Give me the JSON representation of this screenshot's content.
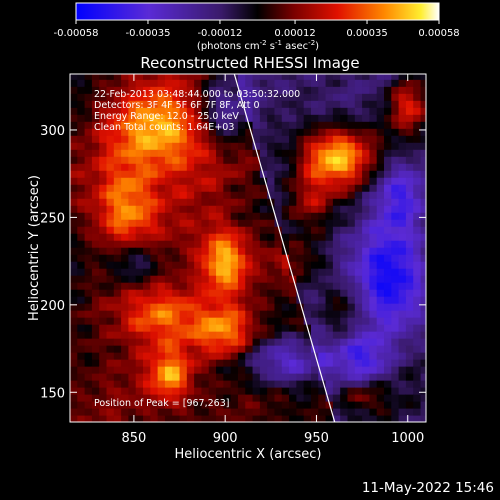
{
  "chart_data": {
    "type": "heatmap",
    "title": "Reconstructed RHESSI Image",
    "xlabel": "Heliocentric X (arcsec)",
    "ylabel": "Heliocentric Y (arcsec)",
    "xlim": [
      815,
      1010
    ],
    "ylim": [
      133,
      332
    ],
    "x_ticks": [
      "850",
      "900",
      "950",
      "1000"
    ],
    "y_ticks": [
      "150",
      "200",
      "250",
      "300"
    ],
    "colorbar": {
      "range": [
        -0.00058,
        0.00058
      ],
      "ticks": [
        "-0.00058",
        "-0.00035",
        "-0.00012",
        "0.00012",
        "0.00035",
        "0.00058"
      ],
      "label_main": "(photons cm",
      "label_exp1": "-2",
      "label_mid": " s",
      "label_exp2": "-1",
      "label_unit": " asec",
      "label_exp3": "-2",
      "label_end": ")",
      "colormap": "blue-purple-black-red-yellow-white"
    },
    "annotations": [
      "22-Feb-2013 03:48:44.000 to 03:50:32.000",
      "Detectors: 3F 4F 5F 6F 7F 8F, Att 0",
      "Energy Range: 12.0 - 25.0 keV",
      "Clean    Total counts: 1.64E+03"
    ],
    "peak_label": "Position of Peak = [967,263]",
    "peak": [
      967,
      263
    ],
    "limb_line": [
      [
        905,
        332
      ],
      [
        960,
        133
      ]
    ],
    "hot_spots": [
      {
        "x": 960,
        "y": 285,
        "amp": 0.00058,
        "sx": 14,
        "sy": 12
      },
      {
        "x": 865,
        "y": 300,
        "amp": 0.0004,
        "sx": 20,
        "sy": 18
      },
      {
        "x": 845,
        "y": 255,
        "amp": 0.00035,
        "sx": 12,
        "sy": 18
      },
      {
        "x": 900,
        "y": 225,
        "amp": 0.00045,
        "sx": 10,
        "sy": 14
      },
      {
        "x": 865,
        "y": 195,
        "amp": 0.0003,
        "sx": 16,
        "sy": 12
      },
      {
        "x": 900,
        "y": 185,
        "amp": 0.00035,
        "sx": 12,
        "sy": 10
      },
      {
        "x": 945,
        "y": 260,
        "amp": 0.00025,
        "sx": 10,
        "sy": 12
      },
      {
        "x": 870,
        "y": 160,
        "amp": 0.00035,
        "sx": 8,
        "sy": 10
      },
      {
        "x": 1000,
        "y": 315,
        "amp": 0.0003,
        "sx": 8,
        "sy": 10
      },
      {
        "x": 940,
        "y": 225,
        "amp": 0.0002,
        "sx": 10,
        "sy": 10
      },
      {
        "x": 965,
        "y": 200,
        "amp": 0.00015,
        "sx": 8,
        "sy": 10
      },
      {
        "x": 975,
        "y": 148,
        "amp": 0.0002,
        "sx": 10,
        "sy": 6
      }
    ],
    "cold_spots": [
      {
        "x": 990,
        "y": 215,
        "amp": -0.00045,
        "sx": 14,
        "sy": 22
      },
      {
        "x": 935,
        "y": 168,
        "amp": -0.0004,
        "sx": 16,
        "sy": 10
      },
      {
        "x": 900,
        "y": 310,
        "amp": -0.0003,
        "sx": 10,
        "sy": 14
      },
      {
        "x": 975,
        "y": 170,
        "amp": -0.0003,
        "sx": 10,
        "sy": 10
      },
      {
        "x": 850,
        "y": 225,
        "amp": -0.00025,
        "sx": 10,
        "sy": 10
      },
      {
        "x": 995,
        "y": 265,
        "amp": -0.0003,
        "sx": 10,
        "sy": 14
      }
    ]
  },
  "footer_date": "11-May-2022 15:46"
}
